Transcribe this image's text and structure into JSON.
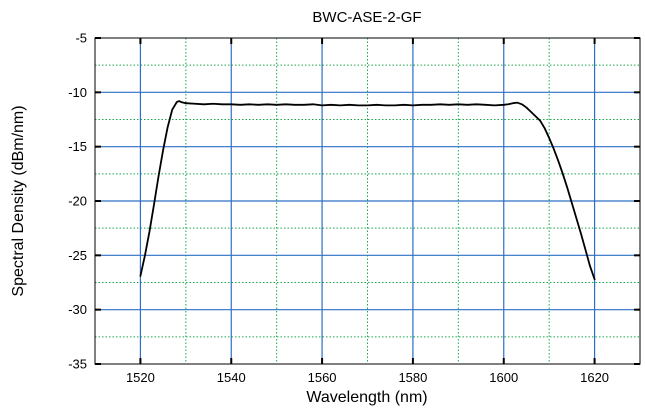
{
  "chart_data": {
    "type": "line",
    "title": "BWC-ASE-2-GF",
    "xlabel": "Wavelength (nm)",
    "ylabel": "Spectral Density (dBm/nm)",
    "xlim": [
      1510,
      1630
    ],
    "ylim": [
      -35,
      -5
    ],
    "x_ticks": [
      1520,
      1540,
      1560,
      1580,
      1600,
      1620
    ],
    "x_tick_labels": [
      "1520",
      "1540",
      "1560",
      "1580",
      "1600",
      "1620"
    ],
    "y_ticks": [
      -5,
      -10,
      -15,
      -20,
      -25,
      -30,
      -35
    ],
    "y_tick_labels": [
      "-5",
      "-10",
      "-15",
      "-20",
      "-25",
      "-30",
      "-35"
    ],
    "grid": true,
    "legend": "none",
    "colors": {
      "major_grid": "#2e6fc4",
      "minor_grid": "#19a84a",
      "line": "#000000",
      "axes": "#000000"
    },
    "series": [
      {
        "x": [
          1520,
          1521,
          1522,
          1523,
          1524,
          1525,
          1526,
          1527,
          1528,
          1528.5,
          1529,
          1530,
          1532,
          1534,
          1536,
          1538,
          1540,
          1542,
          1544,
          1546,
          1548,
          1550,
          1552,
          1554,
          1556,
          1558,
          1560,
          1562,
          1564,
          1566,
          1568,
          1570,
          1572,
          1574,
          1576,
          1578,
          1580,
          1582,
          1584,
          1586,
          1588,
          1590,
          1592,
          1594,
          1596,
          1598,
          1600,
          1601,
          1602,
          1603,
          1604,
          1605,
          1606,
          1607,
          1608,
          1609,
          1610,
          1611,
          1612,
          1613,
          1614,
          1615,
          1616,
          1617,
          1618,
          1619,
          1620
        ],
        "y": [
          -26.9,
          -25.0,
          -22.8,
          -20.3,
          -17.7,
          -15.3,
          -13.2,
          -11.6,
          -10.9,
          -10.8,
          -10.9,
          -11.0,
          -11.05,
          -11.1,
          -11.05,
          -11.1,
          -11.1,
          -11.15,
          -11.1,
          -11.15,
          -11.1,
          -11.15,
          -11.1,
          -11.15,
          -11.15,
          -11.1,
          -11.2,
          -11.15,
          -11.2,
          -11.15,
          -11.2,
          -11.2,
          -11.15,
          -11.2,
          -11.2,
          -11.15,
          -11.2,
          -11.15,
          -11.15,
          -11.1,
          -11.15,
          -11.1,
          -11.15,
          -11.1,
          -11.15,
          -11.2,
          -11.15,
          -11.1,
          -11.0,
          -10.95,
          -11.1,
          -11.4,
          -11.8,
          -12.2,
          -12.6,
          -13.3,
          -14.2,
          -15.2,
          -16.3,
          -17.5,
          -18.8,
          -20.2,
          -21.6,
          -23.0,
          -24.5,
          -26.0,
          -27.2
        ]
      }
    ]
  }
}
